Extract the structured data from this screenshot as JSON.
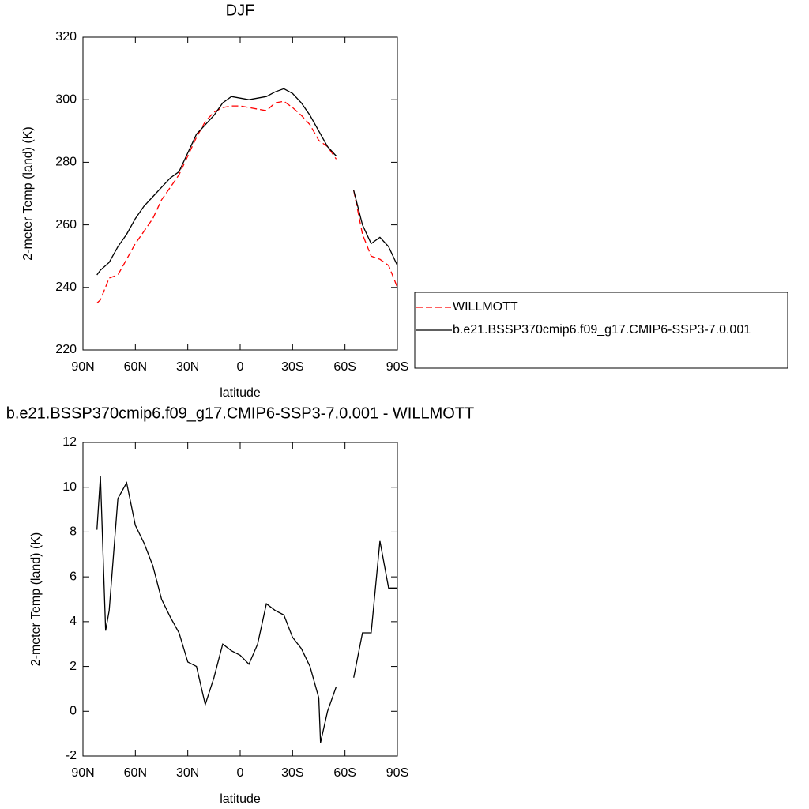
{
  "chart_data": [
    {
      "type": "line",
      "title": "DJF",
      "xlabel": "latitude",
      "ylabel": "2-meter Temp (land) (K)",
      "x": [
        82,
        80,
        75,
        70,
        65,
        60,
        55,
        50,
        45,
        40,
        35,
        30,
        25,
        20,
        15,
        10,
        5,
        0,
        -5,
        -10,
        -15,
        -20,
        -25,
        -30,
        -35,
        -40,
        -45,
        -50,
        -55,
        -60,
        -65,
        -70,
        -75,
        -80,
        -85,
        -90
      ],
      "xlim": [
        90,
        -90
      ],
      "xticks": [
        {
          "value": 90,
          "label": "90N"
        },
        {
          "value": 60,
          "label": "60N"
        },
        {
          "value": 30,
          "label": "30N"
        },
        0,
        {
          "value": -30,
          "label": "30S"
        },
        {
          "value": -60,
          "label": "60S"
        },
        {
          "value": -90,
          "label": "90S"
        }
      ],
      "ylim": [
        220,
        320
      ],
      "yticks": [
        220,
        240,
        260,
        280,
        300,
        320
      ],
      "legend": "right",
      "series": [
        {
          "name": "WILLMOTT",
          "color": "#ff0000",
          "dashed": true,
          "values": [
            235,
            236,
            243,
            244,
            249,
            254,
            258,
            262,
            268,
            272,
            276,
            282,
            288,
            293,
            296,
            297.5,
            298,
            298,
            297.5,
            297,
            296.5,
            299,
            299.5,
            297.5,
            295,
            292,
            287,
            285,
            281,
            null,
            271,
            257,
            250,
            249,
            247,
            240
          ]
        },
        {
          "name": "b.e21.BSSP370cmip6.f09_g17.CMIP6-SSP3-7.0.001",
          "color": "#000000",
          "dashed": false,
          "values": [
            244,
            245.5,
            248,
            253,
            257,
            262,
            266,
            269,
            272,
            275,
            277,
            283,
            289,
            292,
            295,
            299,
            301,
            300.5,
            300,
            300.5,
            301,
            302.5,
            303.5,
            302,
            299,
            295,
            290,
            285,
            282,
            null,
            271,
            260,
            254,
            256,
            253,
            247
          ]
        }
      ]
    },
    {
      "type": "line",
      "title": "b.e21.BSSP370cmip6.f09_g17.CMIP6-SSP3-7.0.001 - WILLMOTT",
      "xlabel": "latitude",
      "ylabel": "2-meter Temp (land) (K)",
      "x": [
        82,
        80,
        77,
        75,
        70,
        65,
        60,
        55,
        50,
        45,
        40,
        35,
        30,
        25,
        20,
        15,
        10,
        5,
        0,
        -5,
        -10,
        -15,
        -20,
        -25,
        -30,
        -35,
        -40,
        -45,
        -46,
        -50,
        -55,
        -60,
        -65,
        -70,
        -75,
        -80,
        -85,
        -90
      ],
      "xlim": [
        90,
        -90
      ],
      "xticks": [
        {
          "value": 90,
          "label": "90N"
        },
        {
          "value": 60,
          "label": "60N"
        },
        {
          "value": 30,
          "label": "30N"
        },
        0,
        {
          "value": -30,
          "label": "30S"
        },
        {
          "value": -60,
          "label": "60S"
        },
        {
          "value": -90,
          "label": "90S"
        }
      ],
      "ylim": [
        -2,
        12
      ],
      "yticks": [
        -2,
        0,
        2,
        4,
        6,
        8,
        10,
        12
      ],
      "color": "#000000",
      "values": [
        8.1,
        10.5,
        3.6,
        4.5,
        9.5,
        10.2,
        8.3,
        7.5,
        6.5,
        5.0,
        4.2,
        3.5,
        2.2,
        2.0,
        0.3,
        1.5,
        3.0,
        2.7,
        2.5,
        2.1,
        3.0,
        4.8,
        4.5,
        4.3,
        3.3,
        2.8,
        2.0,
        0.6,
        -1.4,
        0.0,
        1.1,
        null,
        1.5,
        3.5,
        3.5,
        7.6,
        5.5,
        5.5
      ]
    }
  ]
}
